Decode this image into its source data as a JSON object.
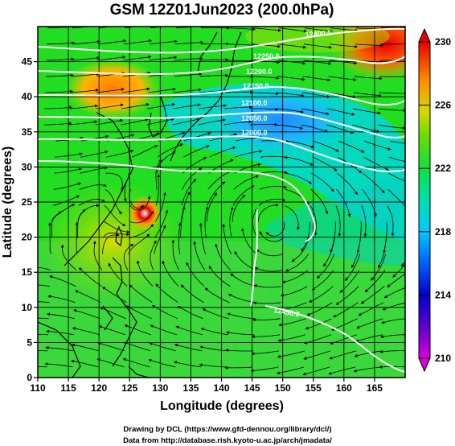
{
  "title": "GSM 12Z01Jun2023 (200.0hPa)",
  "x_axis": {
    "label": "Longitude (degrees)",
    "range": [
      110,
      170
    ],
    "ticks": [
      "110",
      "115",
      "120",
      "125",
      "130",
      "135",
      "140",
      "145",
      "150",
      "155",
      "160",
      "165"
    ]
  },
  "y_axis": {
    "label": "Latitude  (degrees)",
    "range": [
      0,
      50
    ],
    "ticks": [
      "0",
      "5",
      "10",
      "15",
      "20",
      "25",
      "30",
      "35",
      "40",
      "45"
    ]
  },
  "colorbar": {
    "min": 210,
    "max": 230,
    "ticks": [
      "210",
      "214",
      "218",
      "222",
      "226",
      "230"
    ],
    "colors": [
      "#d900d9",
      "#7a00d9",
      "#0000cc",
      "#0044ff",
      "#00a0ff",
      "#00ddee",
      "#00e08c",
      "#1ee61e",
      "#66dd00",
      "#aadd00",
      "#e6d200",
      "#ff9600",
      "#ff3c00",
      "#e60000"
    ]
  },
  "contour_labels": [
    "12250.0",
    "12200.0",
    "12150.0",
    "12100.0",
    "12050.0",
    "12000.0",
    "12400.0",
    "12450.0"
  ],
  "credits": {
    "line1": "Drawing by DCL (https://www.gfd-dennou.org/library/dcl/)",
    "line2": "Data from http://database.rish.kyoto-u.ac.jp/arch/jmadata/"
  },
  "colors": {
    "frame": "#000000",
    "contour": "#ffffff",
    "land": "#000000"
  }
}
